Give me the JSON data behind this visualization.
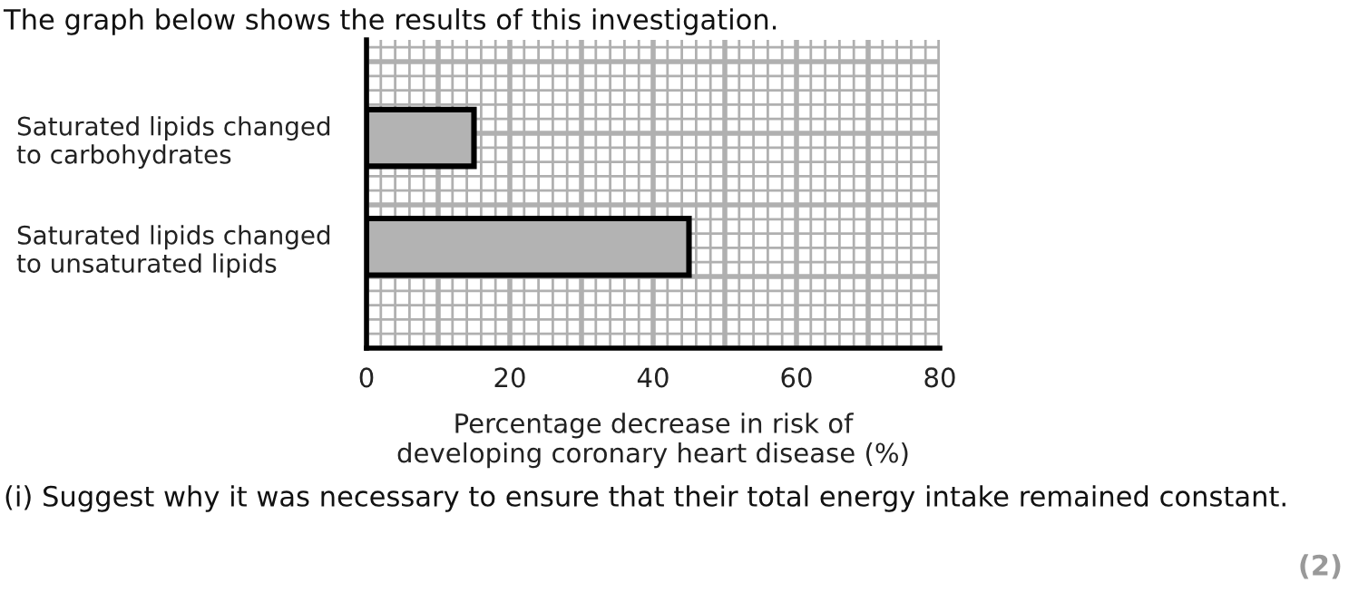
{
  "chart_data": {
    "type": "bar",
    "orientation": "horizontal",
    "title": "The graph below shows the results of this investigation.",
    "categories": [
      "Saturated lipids changed\nto carbohydrates",
      "Saturated lipids changed\nto unsaturated lipids"
    ],
    "values": [
      15,
      45
    ],
    "color": "#b3b3b3",
    "xlim": [
      0,
      80
    ],
    "xticks": [
      0,
      20,
      40,
      60,
      80
    ],
    "xlabel": "Percentage decrease in risk of\ndeveloping coronary heart disease (%)",
    "grid": true,
    "annotations": [
      "(i) Suggest why it was necessary to ensure that their total energy intake remained constant.",
      "(2)"
    ]
  }
}
